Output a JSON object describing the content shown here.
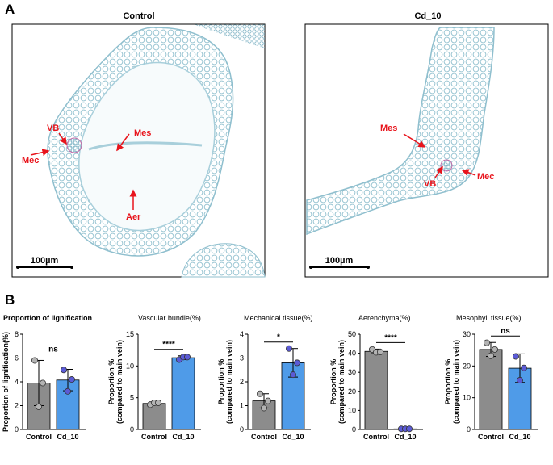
{
  "panel_a": {
    "label": "A",
    "images": [
      {
        "title": "Control",
        "scale_bar": "100µm",
        "annotations": [
          "VB",
          "Mec",
          "Mes",
          "Aer"
        ]
      },
      {
        "title": "Cd_10",
        "scale_bar": "100µm",
        "annotations": [
          "Mes",
          "VB",
          "Mec"
        ]
      }
    ]
  },
  "panel_b": {
    "label": "B"
  },
  "colors": {
    "control_bar": "#8c8c8c",
    "cd10_bar": "#4f9be8",
    "control_dot": "#b3b3b3",
    "cd10_dot": "#5b5bd6",
    "annotation": "#e8141c",
    "micrograph_bg": "#f2f8fa",
    "tissue": "#9cc6d4"
  },
  "chart_data": [
    {
      "type": "bar",
      "title": "Proportion of lignification",
      "ylabel": "Proportion of lignification(%)",
      "ylabel2": "",
      "categories": [
        "Control",
        "Cd_10"
      ],
      "values": [
        3.9,
        4.15
      ],
      "errors": [
        1.9,
        0.9
      ],
      "points": [
        [
          5.8,
          1.9,
          3.9
        ],
        [
          5.0,
          3.2,
          4.2
        ]
      ],
      "ylim": [
        0,
        8
      ],
      "yticks": [
        0,
        2,
        4,
        6,
        8
      ],
      "significance": "ns"
    },
    {
      "type": "bar",
      "title": "Vascular bundle(%)",
      "ylabel": "Proportion %",
      "ylabel2": "(compared to main vein)",
      "categories": [
        "Control",
        "Cd_10"
      ],
      "values": [
        4.1,
        11.3
      ],
      "errors": [
        0.25,
        0.3
      ],
      "points": [
        [
          3.9,
          4.2,
          4.2
        ],
        [
          11.0,
          11.4,
          11.4
        ]
      ],
      "ylim": [
        0,
        15
      ],
      "yticks": [
        0,
        5,
        10,
        15
      ],
      "significance": "****"
    },
    {
      "type": "bar",
      "title": "Mechanical tissue(%)",
      "ylabel": "Proportion %",
      "ylabel2": "(compared to main vein)",
      "categories": [
        "Control",
        "Cd_10"
      ],
      "values": [
        1.2,
        2.8
      ],
      "errors": [
        0.3,
        0.6
      ],
      "points": [
        [
          1.5,
          0.9,
          1.2
        ],
        [
          3.4,
          2.3,
          2.8
        ]
      ],
      "ylim": [
        0,
        4
      ],
      "yticks": [
        0,
        1,
        2,
        3,
        4
      ],
      "significance": "*"
    },
    {
      "type": "bar",
      "title": "Aerenchyma(%)",
      "ylabel": "Proportion %",
      "ylabel2": "(compared to main vein)",
      "categories": [
        "Control",
        "Cd_10"
      ],
      "values": [
        41,
        0.3
      ],
      "errors": [
        1.2,
        0.2
      ],
      "points": [
        [
          42,
          40.5,
          40.7
        ],
        [
          0.3,
          0.3,
          0.3
        ]
      ],
      "ylim": [
        0,
        50
      ],
      "yticks": [
        0,
        10,
        20,
        30,
        40,
        50
      ],
      "significance": "****"
    },
    {
      "type": "bar",
      "title": "Mesophyll tissue(%)",
      "ylabel": "Proportion %",
      "ylabel2": "(compared to main vein)",
      "categories": [
        "Control",
        "Cd_10"
      ],
      "values": [
        25.2,
        19.3
      ],
      "errors": [
        2.2,
        4.5
      ],
      "points": [
        [
          27.3,
          23.2,
          25.2
        ],
        [
          23.0,
          15.5,
          19.4
        ]
      ],
      "ylim": [
        0,
        30
      ],
      "yticks": [
        0,
        10,
        20,
        30
      ],
      "significance": "ns"
    }
  ]
}
